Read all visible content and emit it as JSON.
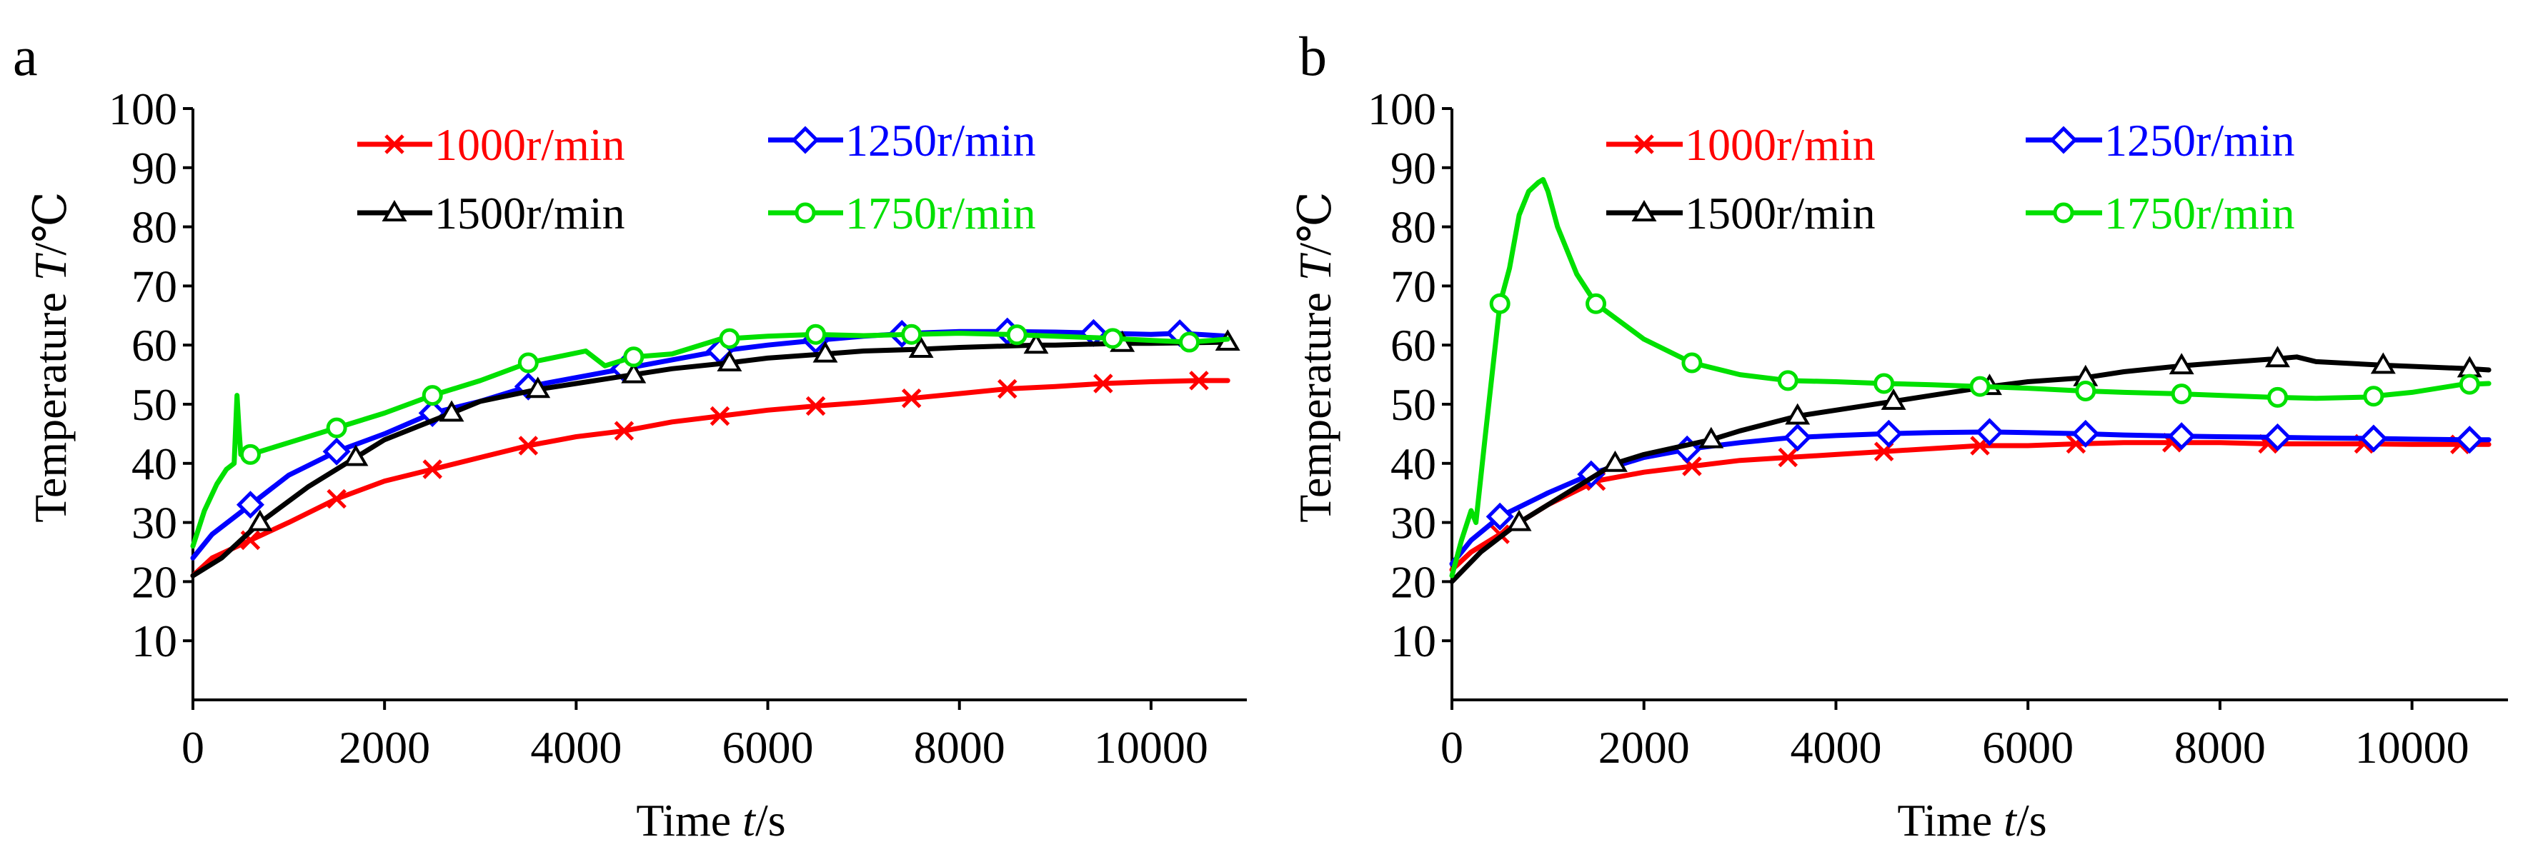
{
  "chart_data": [
    {
      "panel_label": "a",
      "type": "line",
      "xlabel_prefix": "Time ",
      "xlabel_var": "t",
      "xlabel_unit": "/s",
      "ylabel_prefix": "Temperature ",
      "ylabel_var": "T",
      "ylabel_unit": "/℃",
      "xlim": [
        0,
        11000
      ],
      "ylim": [
        0,
        100
      ],
      "xticks": [
        0,
        2000,
        4000,
        6000,
        8000,
        10000
      ],
      "yticks": [
        10,
        20,
        30,
        40,
        50,
        60,
        70,
        80,
        90,
        100
      ],
      "legend_position": "top-center",
      "series": [
        {
          "name": "1000r/min",
          "color": "#ff0000",
          "marker": "x",
          "x": [
            0,
            200,
            600,
            1000,
            1500,
            2000,
            2500,
            3000,
            3500,
            4000,
            4500,
            5000,
            5500,
            6000,
            6500,
            7000,
            7500,
            8000,
            8500,
            9000,
            9500,
            10000,
            10500,
            10800
          ],
          "y": [
            21,
            24,
            27,
            30,
            34,
            37,
            39,
            41,
            43,
            44.5,
            45.5,
            47,
            48,
            49,
            49.7,
            50.3,
            51,
            51.8,
            52.6,
            53,
            53.5,
            53.8,
            54,
            54
          ],
          "marker_x": [
            600,
            1500,
            2500,
            3500,
            4500,
            5500,
            6500,
            7500,
            8500,
            9500,
            10500
          ]
        },
        {
          "name": "1250r/min",
          "color": "#0000ff",
          "marker": "diamond",
          "x": [
            0,
            200,
            600,
            1000,
            1500,
            2000,
            2500,
            3000,
            3500,
            4000,
            4500,
            5000,
            5500,
            6000,
            6500,
            7000,
            7500,
            8000,
            8500,
            9000,
            9500,
            10000,
            10300,
            10800
          ],
          "y": [
            24,
            28,
            33,
            38,
            42,
            45,
            48.5,
            50.5,
            53,
            54.5,
            56,
            57.5,
            59,
            60,
            60.8,
            61.5,
            62,
            62.3,
            62.3,
            62.2,
            62,
            61.8,
            62,
            61.5
          ],
          "marker_x": [
            600,
            1500,
            2500,
            3500,
            4500,
            5500,
            6500,
            7400,
            8500,
            9400,
            10300
          ]
        },
        {
          "name": "1500r/min",
          "color": "#000000",
          "marker": "triangle",
          "x": [
            0,
            300,
            700,
            1200,
            1700,
            2000,
            2700,
            3000,
            3600,
            4000,
            4600,
            5000,
            5600,
            6000,
            6600,
            7000,
            7600,
            8000,
            8800,
            9000,
            9700,
            10000,
            10800
          ],
          "y": [
            21,
            24,
            30,
            36,
            41,
            44,
            48.5,
            50.5,
            52.5,
            53.5,
            55,
            56,
            57,
            57.8,
            58.5,
            59,
            59.3,
            59.6,
            60,
            60,
            60.3,
            60.3,
            60.5
          ],
          "marker_x": [
            700,
            1700,
            2700,
            3600,
            4600,
            5600,
            6600,
            7600,
            8800,
            9700,
            10800
          ]
        },
        {
          "name": "1750r/min",
          "color": "#00e000",
          "marker": "circle",
          "x": [
            0,
            120,
            250,
            350,
            430,
            460,
            480,
            500,
            600,
            1000,
            1500,
            2000,
            2500,
            3000,
            3500,
            3800,
            4100,
            4300,
            4600,
            5000,
            5500,
            6000,
            6500,
            7000,
            7500,
            8000,
            8500,
            9000,
            9500,
            10000,
            10400,
            10800
          ],
          "y": [
            26,
            32,
            36.5,
            39,
            40,
            51.5,
            46,
            41.5,
            41.5,
            43.5,
            46,
            48.5,
            51.5,
            54,
            57,
            58,
            59,
            56.5,
            58,
            58.5,
            61,
            61.5,
            61.8,
            61.6,
            61.8,
            62,
            61.8,
            61.5,
            61.2,
            60.8,
            60.5,
            61
          ],
          "marker_x": [
            600,
            1500,
            2500,
            3500,
            4600,
            5600,
            6500,
            7500,
            8600,
            9600,
            10400
          ]
        }
      ]
    },
    {
      "panel_label": "b",
      "type": "line",
      "xlabel_prefix": "Time ",
      "xlabel_var": "t",
      "xlabel_unit": "/s",
      "ylabel_prefix": "Temperature ",
      "ylabel_var": "T",
      "ylabel_unit": "/℃",
      "xlim": [
        0,
        11000
      ],
      "ylim": [
        0,
        100
      ],
      "xticks": [
        0,
        2000,
        4000,
        6000,
        8000,
        10000
      ],
      "yticks": [
        10,
        20,
        30,
        40,
        50,
        60,
        70,
        80,
        90,
        100
      ],
      "legend_position": "top-center",
      "series": [
        {
          "name": "1000r/min",
          "color": "#ff0000",
          "marker": "x",
          "x": [
            0,
            200,
            500,
            1000,
            1500,
            2000,
            2500,
            3000,
            3500,
            4000,
            4500,
            5000,
            5500,
            6000,
            6500,
            7000,
            7500,
            8000,
            8500,
            9000,
            9500,
            10000,
            10500,
            10800
          ],
          "y": [
            22,
            25,
            28,
            33,
            37,
            38.5,
            39.5,
            40.5,
            41,
            41.5,
            42,
            42.5,
            43,
            43,
            43.3,
            43.5,
            43.5,
            43.5,
            43.3,
            43.3,
            43.3,
            43.2,
            43.2,
            43.2
          ],
          "marker_x": [
            500,
            1500,
            2500,
            3500,
            4500,
            5500,
            6500,
            7500,
            8500,
            9500,
            10500
          ]
        },
        {
          "name": "1250r/min",
          "color": "#0000ff",
          "marker": "diamond",
          "x": [
            0,
            200,
            500,
            1000,
            1500,
            2000,
            2500,
            3000,
            3500,
            4000,
            4500,
            5000,
            5600,
            6000,
            6600,
            7000,
            7600,
            8000,
            8600,
            9000,
            9600,
            10000,
            10500,
            10800
          ],
          "y": [
            23,
            27,
            31,
            35,
            38.5,
            41,
            42.5,
            43.5,
            44.3,
            44.7,
            45,
            45.2,
            45.3,
            45.2,
            45,
            44.8,
            44.6,
            44.5,
            44.4,
            44.3,
            44.2,
            44.1,
            44,
            44
          ],
          "marker_x": [
            500,
            1450,
            2450,
            3600,
            4550,
            5600,
            6600,
            7600,
            8600,
            9600,
            10600
          ]
        },
        {
          "name": "1500r/min",
          "color": "#000000",
          "marker": "triangle",
          "x": [
            0,
            300,
            700,
            1200,
            1700,
            2000,
            2700,
            3000,
            3600,
            4000,
            4600,
            5000,
            5600,
            6000,
            6600,
            7000,
            7600,
            8000,
            8600,
            8800,
            9000,
            9700,
            10000,
            10600,
            10800
          ],
          "y": [
            20,
            25,
            30,
            35,
            40,
            41.5,
            44,
            45.5,
            48,
            49,
            50.5,
            51.5,
            53,
            53.8,
            54.5,
            55.5,
            56.5,
            57,
            57.7,
            58,
            57.2,
            56.6,
            56.4,
            56,
            55.8
          ],
          "marker_x": [
            700,
            1700,
            2700,
            3600,
            4600,
            5600,
            6600,
            7600,
            8600,
            9700,
            10600
          ]
        },
        {
          "name": "1750r/min",
          "color": "#00e000",
          "marker": "circle",
          "x": [
            0,
            100,
            200,
            250,
            350,
            500,
            600,
            700,
            800,
            900,
            950,
            1000,
            1100,
            1300,
            1500,
            2000,
            2500,
            3000,
            3500,
            4000,
            4500,
            5000,
            5500,
            6000,
            6500,
            7000,
            7500,
            8000,
            8500,
            9000,
            9500,
            10000,
            10500,
            10800
          ],
          "y": [
            21,
            27,
            32,
            30,
            45,
            67,
            73,
            82,
            86,
            87.5,
            88,
            86,
            80,
            72,
            67,
            61,
            57,
            55,
            54,
            53.8,
            53.5,
            53.3,
            53,
            52.7,
            52.3,
            52,
            51.8,
            51.5,
            51.2,
            51,
            51.2,
            52,
            53.3,
            53.5
          ],
          "marker_x": [
            500,
            1500,
            2500,
            3500,
            4500,
            5500,
            6600,
            7600,
            8600,
            9600,
            10600
          ]
        }
      ]
    }
  ]
}
